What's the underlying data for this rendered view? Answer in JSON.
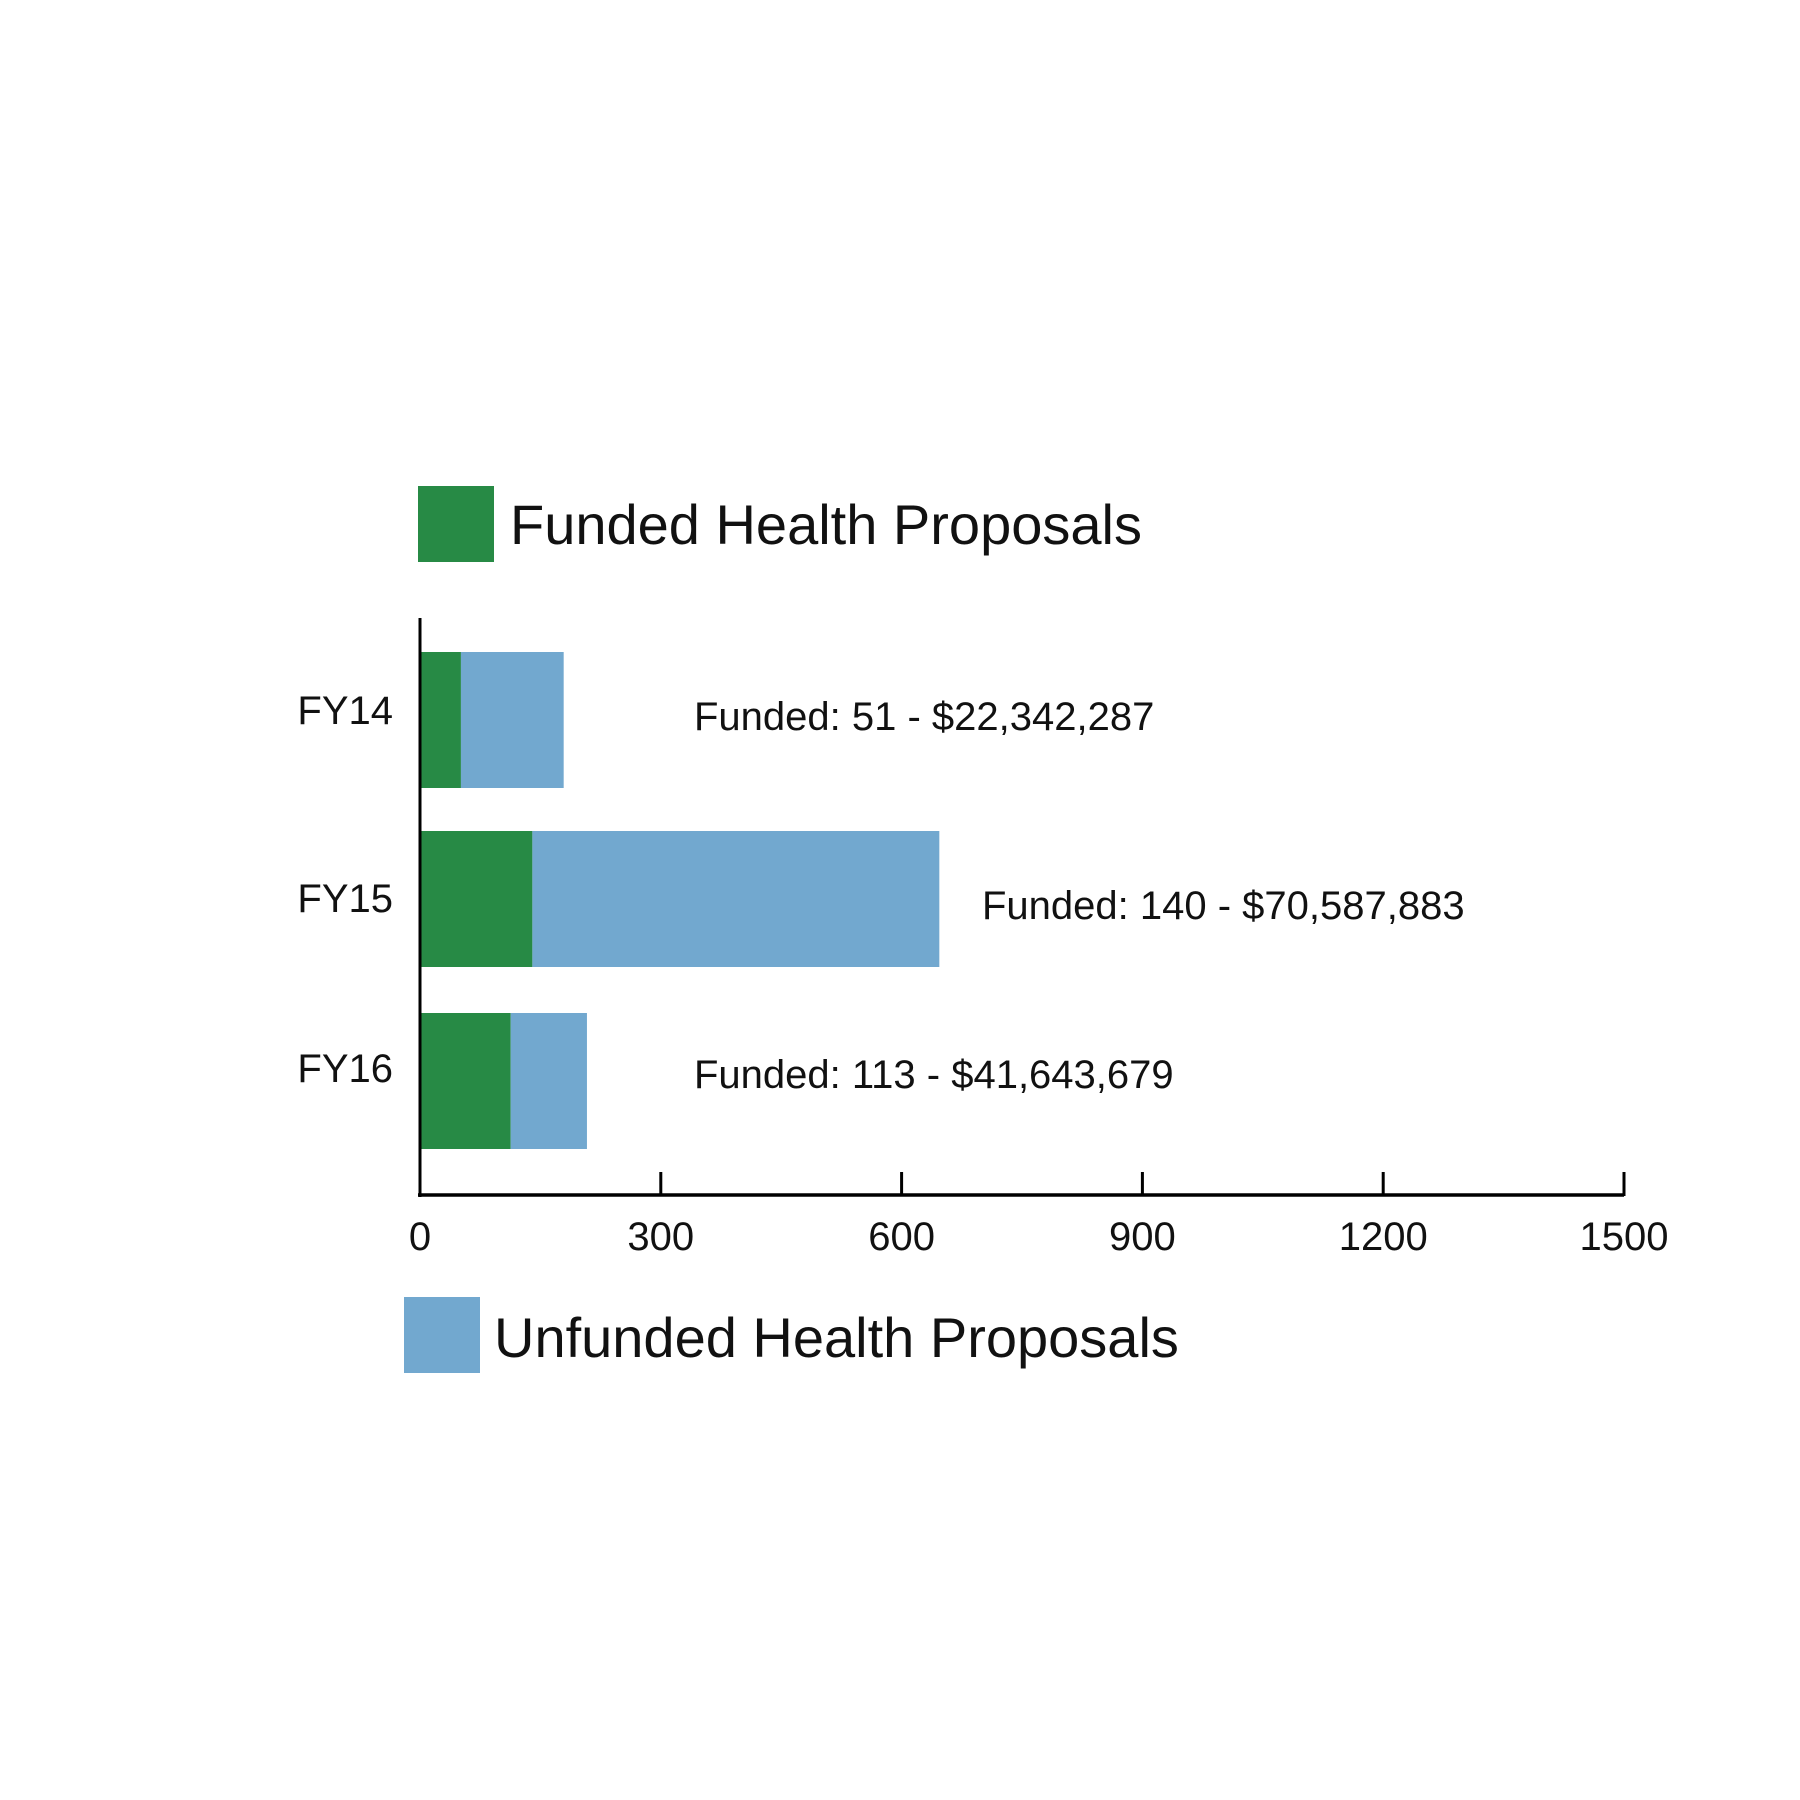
{
  "chart_data": {
    "type": "bar",
    "orientation": "horizontal",
    "stacked": true,
    "categories": [
      "FY14",
      "FY15",
      "FY16"
    ],
    "series": [
      {
        "name": "Funded Health Proposals",
        "color": "#278a45",
        "values": [
          51,
          140,
          113
        ]
      },
      {
        "name": "Unfunded Health Proposals",
        "color": "#72a8cf",
        "values": [
          128,
          507,
          95
        ]
      }
    ],
    "data_labels": [
      "Funded: 51 - $22,342,287",
      "Funded: 140 - $70,587,883",
      "Funded: 113 - $41,643,679"
    ],
    "xlim": [
      0,
      1500
    ],
    "xticks": [
      "0",
      "300",
      "600",
      "900",
      "1200",
      "1500"
    ],
    "grid": false,
    "legend": [
      "top",
      "bottom"
    ]
  }
}
